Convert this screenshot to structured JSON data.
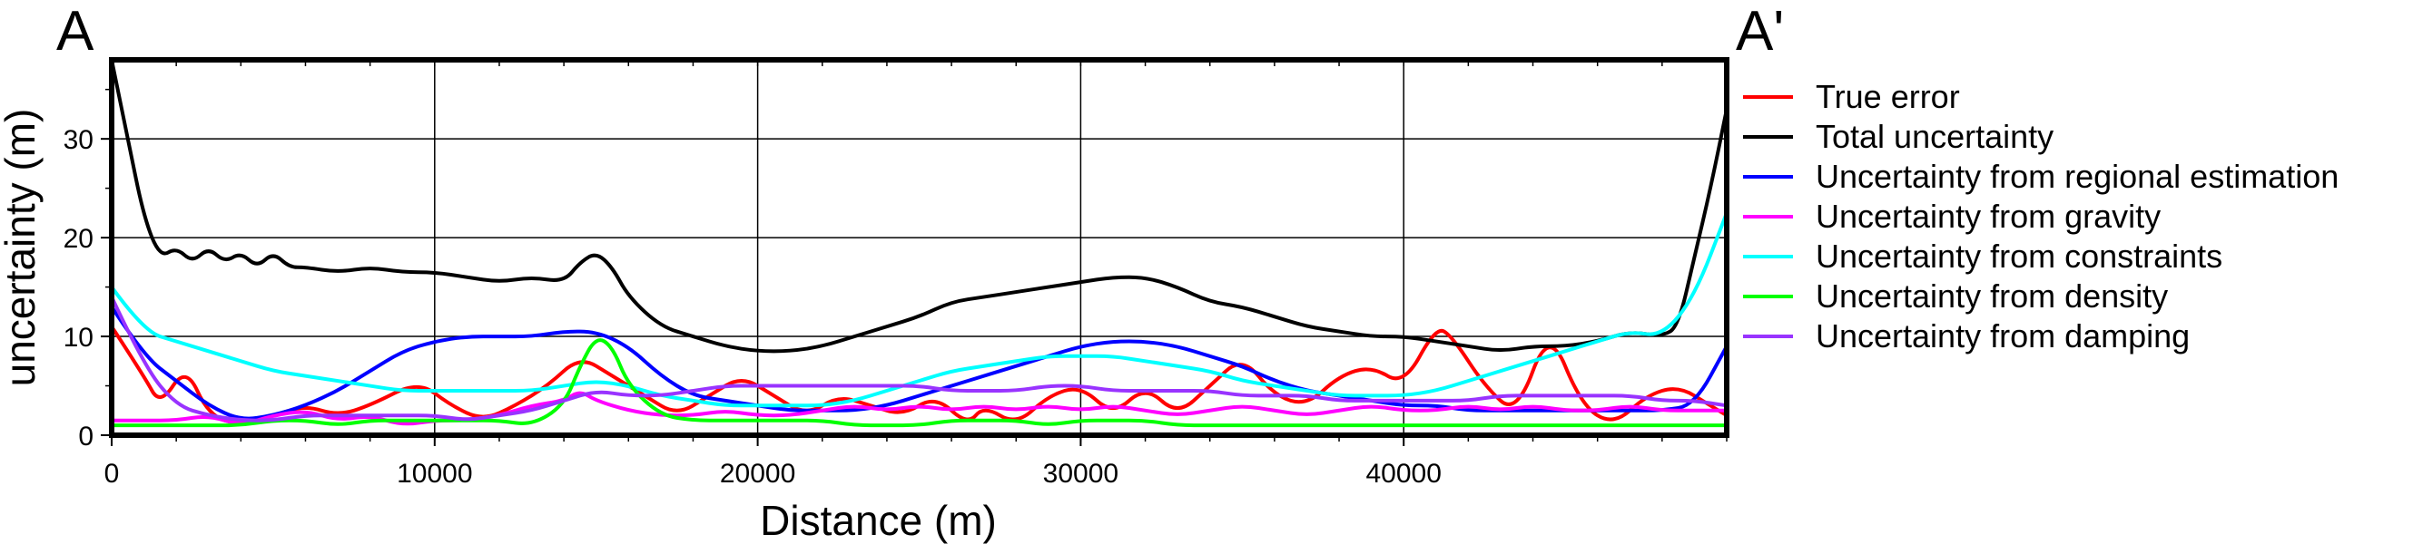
{
  "chart_data": {
    "type": "line",
    "title": "",
    "profile_start_label": "A",
    "profile_end_label": "A'",
    "xlabel": "Distance (m)",
    "ylabel": "uncertainty (m)",
    "xlim": [
      0,
      50000
    ],
    "ylim": [
      0,
      38
    ],
    "x_ticks": [
      0,
      10000,
      20000,
      30000,
      40000
    ],
    "x_tick_labels": [
      "0",
      "10000",
      "20000",
      "30000",
      "40000"
    ],
    "y_ticks": [
      0,
      10,
      20,
      30
    ],
    "y_tick_labels": [
      "0",
      "10",
      "20",
      "30"
    ],
    "grid": true,
    "legend_position": "right",
    "series": [
      {
        "name": "True error",
        "color": "#ff0000",
        "x": [
          0,
          1000,
          1500,
          2300,
          3000,
          4000,
          5000,
          6000,
          7000,
          8000,
          9500,
          10500,
          11500,
          12500,
          13500,
          14500,
          15500,
          16500,
          17500,
          18500,
          19500,
          20500,
          21500,
          22500,
          23500,
          24500,
          25500,
          26500,
          27000,
          28000,
          29000,
          30000,
          31000,
          32000,
          33000,
          34000,
          35000,
          36000,
          37000,
          38000,
          39000,
          40000,
          41000,
          41500,
          42500,
          43500,
          44500,
          45500,
          46500,
          47500,
          48500,
          49500,
          50000
        ],
        "y": [
          11,
          6,
          3,
          7,
          2,
          1,
          2,
          3,
          2,
          3,
          5.5,
          3,
          1.5,
          3,
          5,
          8,
          6,
          4,
          2,
          4,
          6,
          4,
          2,
          4,
          3,
          2,
          4,
          1,
          3,
          1,
          4,
          5,
          2,
          5,
          2,
          5,
          8,
          4,
          3,
          6,
          7,
          5,
          11,
          10,
          5,
          2,
          11,
          3,
          1,
          4,
          5,
          3,
          2
        ]
      },
      {
        "name": "Total uncertainty",
        "color": "#000000",
        "x": [
          0,
          500,
          1000,
          1500,
          2000,
          2500,
          3000,
          3500,
          4000,
          4500,
          5000,
          5500,
          6000,
          7000,
          8000,
          9000,
          10000,
          11000,
          12000,
          13000,
          14000,
          14500,
          15000,
          15500,
          16000,
          17000,
          18000,
          19000,
          20000,
          21000,
          22000,
          23000,
          24000,
          25000,
          26000,
          27000,
          28000,
          29000,
          30000,
          31000,
          32000,
          33000,
          34000,
          35000,
          36000,
          37000,
          38000,
          39000,
          40000,
          41000,
          42000,
          43000,
          44000,
          45000,
          46000,
          47000,
          48000,
          48500,
          49000,
          49500,
          50000
        ],
        "y": [
          38,
          30,
          22,
          18,
          19,
          17.5,
          19,
          17.5,
          18.5,
          17,
          18.5,
          17,
          17,
          16.5,
          17,
          16.5,
          16.5,
          16,
          15.5,
          16,
          15.5,
          17.5,
          18.5,
          17,
          14,
          11,
          10,
          9,
          8.5,
          8.5,
          9,
          10,
          11,
          12,
          13.5,
          14,
          14.5,
          15,
          15.5,
          16,
          16,
          15,
          13.5,
          13,
          12,
          11,
          10.5,
          10,
          10,
          9.5,
          9,
          8.5,
          9,
          9,
          9.5,
          10.5,
          10,
          11,
          18,
          25,
          33
        ]
      },
      {
        "name": "Uncertainty from regional estimation",
        "color": "#0000ff",
        "x": [
          0,
          1000,
          2000,
          3000,
          4000,
          5000,
          6000,
          7000,
          8000,
          9000,
          10000,
          11000,
          12000,
          13000,
          14000,
          15000,
          16000,
          17000,
          18000,
          19000,
          20000,
          21000,
          22000,
          23000,
          24000,
          25000,
          26000,
          27000,
          28000,
          29000,
          30000,
          31000,
          32000,
          33000,
          34000,
          35000,
          36000,
          37000,
          38000,
          39000,
          40000,
          41000,
          42000,
          43000,
          44000,
          45000,
          46000,
          47000,
          48000,
          49000,
          50000
        ],
        "y": [
          13,
          8,
          5.5,
          3,
          1.5,
          2,
          3,
          4.5,
          6.5,
          8.5,
          9.5,
          10,
          10,
          10,
          10.5,
          10.5,
          9,
          6,
          4,
          3.5,
          3,
          2.5,
          2.5,
          2.5,
          3,
          4,
          5,
          6,
          7,
          8,
          9,
          9.5,
          9.5,
          9,
          8,
          7,
          5.5,
          4.5,
          4,
          3.5,
          3,
          3,
          2.5,
          2.5,
          2.5,
          2.5,
          2.5,
          2.5,
          2.5,
          3,
          9
        ]
      },
      {
        "name": "Uncertainty from gravity",
        "color": "#ff00ff",
        "x": [
          0,
          1000,
          2000,
          3000,
          4000,
          5000,
          6000,
          7000,
          8000,
          9000,
          10000,
          11000,
          12000,
          13000,
          14000,
          14500,
          15000,
          16000,
          17000,
          18000,
          19000,
          20000,
          21000,
          22000,
          23000,
          24000,
          25000,
          26000,
          27000,
          28000,
          29000,
          30000,
          31000,
          32000,
          33000,
          34000,
          35000,
          36000,
          37000,
          38000,
          39000,
          40000,
          41000,
          42000,
          43000,
          44000,
          45000,
          46000,
          47000,
          48000,
          49000,
          50000
        ],
        "y": [
          1.5,
          1.5,
          1.5,
          2,
          1,
          2,
          2.5,
          1.5,
          2,
          1,
          1.5,
          1.5,
          2,
          3,
          3.5,
          4.5,
          3.5,
          2.5,
          2,
          2,
          2.5,
          2,
          2,
          2.5,
          3,
          2.5,
          3,
          2.5,
          3,
          2.5,
          3,
          2.5,
          3,
          2.5,
          2,
          2.5,
          3,
          2.5,
          2,
          2.5,
          3,
          2.5,
          2.5,
          3,
          2.5,
          3,
          2.5,
          2.5,
          3,
          2.5,
          2.5,
          2.5
        ]
      },
      {
        "name": "Uncertainty from constraints",
        "color": "#00ffff",
        "x": [
          0,
          1000,
          2000,
          3000,
          4000,
          5000,
          6000,
          7000,
          8000,
          9000,
          10000,
          11000,
          12000,
          13000,
          14000,
          15000,
          16000,
          17000,
          18000,
          19000,
          20000,
          21000,
          22000,
          23000,
          24000,
          25000,
          26000,
          27000,
          28000,
          29000,
          30000,
          31000,
          32000,
          33000,
          34000,
          35000,
          36000,
          37000,
          38000,
          39000,
          40000,
          41000,
          42000,
          43000,
          44000,
          45000,
          46000,
          47000,
          48000,
          49000,
          50000
        ],
        "y": [
          15,
          10.5,
          9.5,
          8.5,
          7.5,
          6.5,
          6,
          5.5,
          5,
          4.5,
          4.5,
          4.5,
          4.5,
          4.5,
          5,
          5.5,
          5,
          4,
          3.5,
          3,
          3,
          3,
          3,
          3.5,
          4.5,
          5.5,
          6.5,
          7,
          7.5,
          8,
          8,
          8,
          7.5,
          7,
          6.5,
          5.5,
          5,
          4.5,
          4,
          4,
          4,
          4.5,
          5.5,
          6.5,
          7.5,
          8.5,
          9.5,
          10.5,
          10,
          14,
          22.5
        ]
      },
      {
        "name": "Uncertainty from density",
        "color": "#00ff00",
        "x": [
          0,
          1000,
          2000,
          3000,
          4000,
          5000,
          6000,
          7000,
          8000,
          9000,
          10000,
          11000,
          12000,
          13000,
          14000,
          14500,
          15000,
          15500,
          16000,
          17000,
          18000,
          19000,
          20000,
          21000,
          22000,
          23000,
          24000,
          25000,
          26000,
          27000,
          28000,
          29000,
          30000,
          31000,
          32000,
          33000,
          34000,
          35000,
          36000,
          37000,
          38000,
          39000,
          40000,
          41000,
          42000,
          43000,
          44000,
          45000,
          46000,
          47000,
          48000,
          49000,
          50000
        ],
        "y": [
          1,
          1,
          1,
          1,
          1,
          1.5,
          1.5,
          1,
          1.5,
          1.5,
          1.5,
          1.5,
          1.5,
          1,
          3,
          7,
          10,
          9,
          5,
          2,
          1.5,
          1.5,
          1.5,
          1.5,
          1.5,
          1,
          1,
          1,
          1.5,
          1.5,
          1.5,
          1,
          1.5,
          1.5,
          1.5,
          1,
          1,
          1,
          1,
          1,
          1,
          1,
          1,
          1,
          1,
          1,
          1,
          1,
          1,
          1,
          1,
          1,
          1
        ]
      },
      {
        "name": "Uncertainty from damping",
        "color": "#9933ff",
        "x": [
          0,
          1000,
          2000,
          3000,
          4000,
          5000,
          6000,
          7000,
          8000,
          9000,
          10000,
          11000,
          12000,
          13000,
          14000,
          15000,
          16000,
          17000,
          18000,
          19000,
          20000,
          21000,
          22000,
          23000,
          24000,
          25000,
          26000,
          27000,
          28000,
          29000,
          30000,
          31000,
          32000,
          33000,
          34000,
          35000,
          36000,
          37000,
          38000,
          39000,
          40000,
          41000,
          42000,
          43000,
          44000,
          45000,
          46000,
          47000,
          48000,
          49000,
          50000
        ],
        "y": [
          14,
          7,
          3,
          2,
          1.5,
          1.5,
          2,
          2,
          2,
          2,
          2,
          1.5,
          2,
          2.5,
          3.5,
          4.5,
          4,
          4,
          4.5,
          5,
          5,
          5,
          5,
          5,
          5,
          5,
          4.5,
          4.5,
          4.5,
          5,
          5,
          4.5,
          4.5,
          4.5,
          4.5,
          4,
          4,
          4,
          3.5,
          3.5,
          3.5,
          3.5,
          3.5,
          4,
          4,
          4,
          4,
          4,
          3.5,
          3.5,
          3
        ]
      }
    ]
  }
}
